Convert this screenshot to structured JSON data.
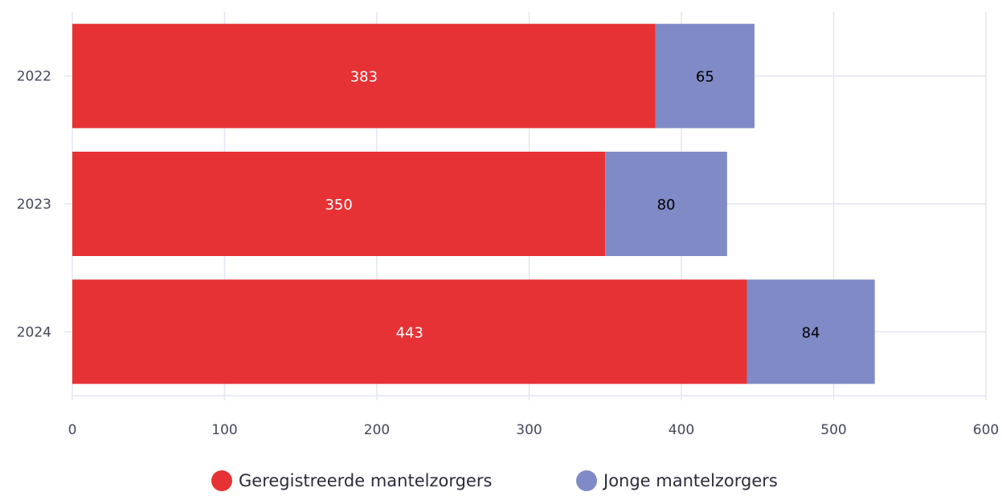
{
  "chart_data": {
    "type": "bar",
    "orientation": "horizontal",
    "stacked": true,
    "categories": [
      "2022",
      "2023",
      "2024"
    ],
    "series": [
      {
        "name": "Geregistreerde mantelzorgers",
        "values": [
          383,
          350,
          443
        ],
        "color": "#e63235",
        "label_color": "#ffffff"
      },
      {
        "name": "Jonge mantelzorgers",
        "values": [
          65,
          80,
          84
        ],
        "color": "#7f8ac6",
        "label_color": "#000000"
      }
    ],
    "xlim": [
      0,
      600
    ],
    "x_ticks": [
      0,
      100,
      200,
      300,
      400,
      500,
      600
    ],
    "title": "",
    "xlabel": "",
    "ylabel": "",
    "grid": true,
    "legend_position": "bottom-center"
  }
}
